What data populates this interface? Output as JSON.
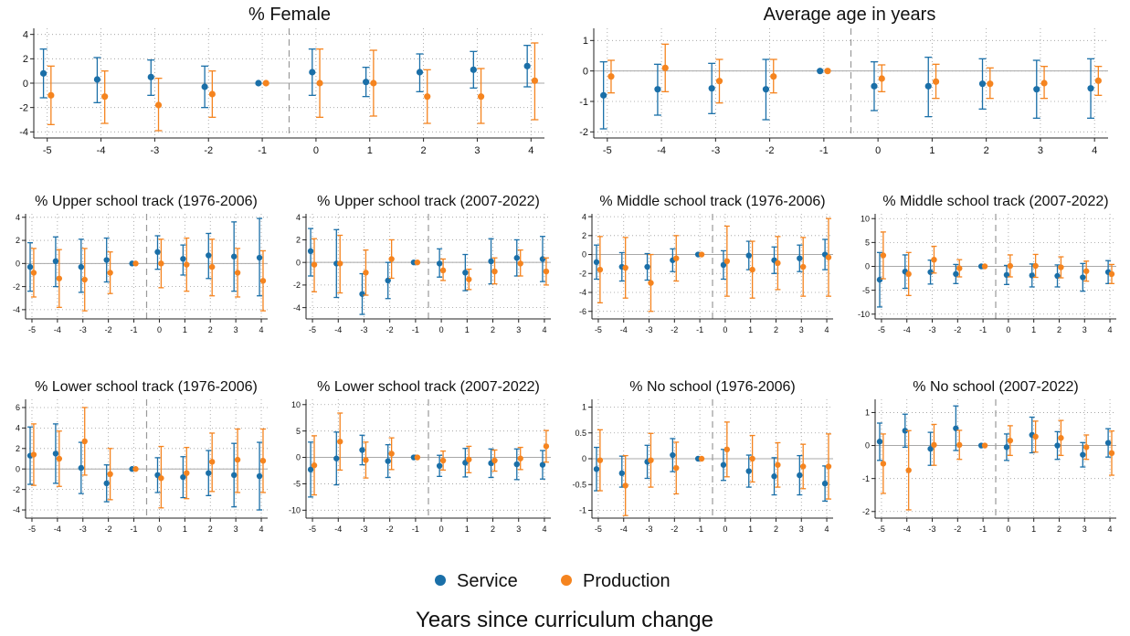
{
  "figure": {
    "legend": [
      {
        "name": "Service",
        "color": "#1a6fa8"
      },
      {
        "name": "Production",
        "color": "#f5841f"
      }
    ],
    "xlabel": "Years since curriculum change"
  },
  "chart_data": [
    {
      "type": "scatter",
      "title": "% Female",
      "x": [
        -5,
        -4,
        -3,
        -2,
        -1,
        0,
        1,
        2,
        3,
        4
      ],
      "ylim": [
        -4.5,
        4.5
      ],
      "yticks": [
        -4,
        -2,
        0,
        2,
        4
      ],
      "reference_line": -0.5,
      "series": [
        {
          "name": "Service",
          "values": [
            0.8,
            0.3,
            0.5,
            -0.3,
            0,
            0.9,
            0.1,
            0.9,
            1.1,
            1.4
          ],
          "lower": [
            -1.2,
            -1.6,
            -1.0,
            -2.0,
            0,
            -1.0,
            -1.1,
            -0.7,
            -0.4,
            -0.3
          ],
          "upper": [
            2.8,
            2.1,
            1.9,
            1.4,
            0,
            2.8,
            1.3,
            2.4,
            2.6,
            3.1
          ]
        },
        {
          "name": "Production",
          "values": [
            -1.0,
            -1.1,
            -1.8,
            -0.9,
            0,
            0.0,
            0.0,
            -1.1,
            -1.1,
            0.2
          ],
          "lower": [
            -3.4,
            -3.3,
            -3.9,
            -2.8,
            0,
            -2.8,
            -2.7,
            -3.3,
            -3.3,
            -3.0
          ],
          "upper": [
            1.4,
            1.0,
            0.4,
            1.0,
            0,
            2.8,
            2.7,
            1.1,
            1.2,
            3.3
          ]
        }
      ]
    },
    {
      "type": "scatter",
      "title": "Average age in years",
      "x": [
        -5,
        -4,
        -3,
        -2,
        -1,
        0,
        1,
        2,
        3,
        4
      ],
      "ylim": [
        -2.2,
        1.4
      ],
      "yticks": [
        -2,
        -1,
        0,
        1
      ],
      "reference_line": -0.5,
      "series": [
        {
          "name": "Service",
          "values": [
            -0.8,
            -0.6,
            -0.57,
            -0.6,
            0,
            -0.5,
            -0.5,
            -0.42,
            -0.6,
            -0.57
          ],
          "lower": [
            -1.9,
            -1.45,
            -1.4,
            -1.6,
            0,
            -1.3,
            -1.5,
            -1.25,
            -1.55,
            -1.55
          ],
          "upper": [
            0.3,
            0.22,
            0.25,
            0.38,
            0,
            0.3,
            0.45,
            0.4,
            0.35,
            0.4
          ]
        },
        {
          "name": "Production",
          "values": [
            -0.18,
            0.1,
            -0.33,
            -0.18,
            0,
            -0.25,
            -0.35,
            -0.42,
            -0.4,
            -0.32
          ],
          "lower": [
            -0.72,
            -0.68,
            -1.05,
            -0.72,
            0,
            -0.68,
            -0.9,
            -0.9,
            -0.9,
            -0.8
          ],
          "upper": [
            0.35,
            0.88,
            0.38,
            0.38,
            0,
            0.2,
            0.22,
            0.1,
            0.15,
            0.15
          ]
        }
      ]
    },
    {
      "type": "scatter",
      "title": "% Upper school track (1976-2006)",
      "x": [
        -5,
        -4,
        -3,
        -2,
        -1,
        0,
        1,
        2,
        3,
        4
      ],
      "ylim": [
        -4.8,
        4.3
      ],
      "yticks": [
        -4,
        -2,
        0,
        2,
        4
      ],
      "reference_line": -0.5,
      "series": [
        {
          "name": "Service",
          "values": [
            -0.3,
            0.2,
            -0.3,
            0.3,
            0,
            1.0,
            0.4,
            0.7,
            0.6,
            0.5
          ],
          "lower": [
            -2.4,
            -2.0,
            -2.5,
            -1.6,
            0,
            -0.5,
            -1.0,
            -1.3,
            -2.4,
            -2.8
          ],
          "upper": [
            1.8,
            2.3,
            2.1,
            2.2,
            0,
            2.4,
            1.6,
            2.6,
            3.6,
            3.9
          ]
        },
        {
          "name": "Production",
          "values": [
            -0.8,
            -1.3,
            -1.4,
            -0.8,
            0,
            0.0,
            -0.1,
            -0.3,
            -0.8,
            -1.5
          ],
          "lower": [
            -2.9,
            -3.8,
            -4.1,
            -2.6,
            0,
            -2.1,
            -2.4,
            -2.8,
            -2.9,
            -4.1
          ],
          "upper": [
            1.3,
            1.2,
            1.3,
            1.0,
            0,
            2.1,
            2.2,
            2.1,
            1.3,
            1.1
          ]
        }
      ]
    },
    {
      "type": "scatter",
      "title": "% Upper school track (2007-2022)",
      "x": [
        -5,
        -4,
        -3,
        -2,
        -1,
        0,
        1,
        2,
        3,
        4
      ],
      "ylim": [
        -5.0,
        4.3
      ],
      "yticks": [
        -4,
        -2,
        0,
        2,
        4
      ],
      "reference_line": -0.5,
      "series": [
        {
          "name": "Service",
          "values": [
            1.0,
            -0.1,
            -2.8,
            -1.6,
            0,
            -0.1,
            -0.9,
            0.1,
            0.4,
            0.3
          ],
          "lower": [
            -1.2,
            -3.1,
            -4.6,
            -3.2,
            0,
            -1.3,
            -2.5,
            -1.9,
            -1.2,
            -1.7
          ],
          "upper": [
            3.0,
            2.9,
            -1.0,
            0.0,
            0,
            1.2,
            0.7,
            2.1,
            2.0,
            2.3
          ]
        },
        {
          "name": "Production",
          "values": [
            -0.2,
            -0.1,
            -0.9,
            0.3,
            0,
            -0.7,
            -1.5,
            -0.8,
            -0.1,
            -0.8
          ],
          "lower": [
            -2.6,
            -2.7,
            -2.9,
            -1.4,
            0,
            -1.6,
            -2.4,
            -1.9,
            -1.2,
            -2.0
          ],
          "upper": [
            2.1,
            2.4,
            1.1,
            2.0,
            0,
            0.3,
            -0.6,
            0.4,
            1.1,
            0.4
          ]
        }
      ]
    },
    {
      "type": "scatter",
      "title": "% Middle school track (1976-2006)",
      "x": [
        -5,
        -4,
        -3,
        -2,
        -1,
        0,
        1,
        2,
        3,
        4
      ],
      "ylim": [
        -6.8,
        4.3
      ],
      "yticks": [
        -6,
        -4,
        -2,
        0,
        2,
        4
      ],
      "reference_line": -0.5,
      "series": [
        {
          "name": "Service",
          "values": [
            -0.8,
            -1.3,
            -1.3,
            -0.6,
            0,
            -1.1,
            -0.1,
            -0.6,
            -0.4,
            0.0
          ],
          "lower": [
            -2.6,
            -2.8,
            -2.7,
            -1.8,
            0,
            -2.6,
            -1.6,
            -2.0,
            -1.8,
            -1.6
          ],
          "upper": [
            1.0,
            0.2,
            0.1,
            0.6,
            0,
            0.4,
            1.4,
            0.8,
            1.0,
            1.6
          ]
        },
        {
          "name": "Production",
          "values": [
            -1.6,
            -1.4,
            -3.0,
            -0.4,
            0,
            -0.7,
            -1.6,
            -0.9,
            -1.3,
            -0.3
          ],
          "lower": [
            -5.1,
            -4.6,
            -6.0,
            -2.8,
            0,
            -4.4,
            -4.6,
            -3.7,
            -4.4,
            -4.4
          ],
          "upper": [
            1.9,
            1.8,
            0.0,
            2.0,
            0,
            3.0,
            1.4,
            1.9,
            1.8,
            3.8
          ]
        }
      ]
    },
    {
      "type": "scatter",
      "title": "% Middle school track (2007-2022)",
      "x": [
        -5,
        -4,
        -3,
        -2,
        -1,
        0,
        1,
        2,
        3,
        4
      ],
      "ylim": [
        -11.0,
        11.0
      ],
      "yticks": [
        -10,
        -5,
        0,
        5,
        10
      ],
      "reference_line": -0.5,
      "series": [
        {
          "name": "Service",
          "values": [
            -2.8,
            -1.1,
            -1.2,
            -1.6,
            0,
            -1.8,
            -1.9,
            -2.0,
            -2.3,
            -1.2
          ],
          "lower": [
            -8.5,
            -4.6,
            -3.7,
            -3.6,
            0,
            -3.8,
            -4.3,
            -4.3,
            -5.2,
            -3.6
          ],
          "upper": [
            2.9,
            2.4,
            1.3,
            0.4,
            0,
            0.2,
            0.5,
            0.3,
            0.6,
            1.2
          ]
        },
        {
          "name": "Production",
          "values": [
            2.3,
            -1.6,
            1.4,
            -0.4,
            0,
            0.1,
            0.1,
            -0.2,
            -1.0,
            -1.6
          ],
          "lower": [
            -2.6,
            -6.1,
            -1.4,
            -2.2,
            0,
            -2.2,
            -2.3,
            -2.4,
            -3.1,
            -3.6
          ],
          "upper": [
            7.2,
            2.9,
            4.2,
            1.4,
            0,
            2.4,
            2.5,
            2.0,
            1.1,
            0.4
          ]
        }
      ]
    },
    {
      "type": "scatter",
      "title": "% Lower school track (1976-2006)",
      "x": [
        -5,
        -4,
        -3,
        -2,
        -1,
        0,
        1,
        2,
        3,
        4
      ],
      "ylim": [
        -4.8,
        6.8
      ],
      "yticks": [
        -4,
        -2,
        0,
        2,
        4,
        6
      ],
      "reference_line": -0.5,
      "series": [
        {
          "name": "Service",
          "values": [
            1.3,
            1.5,
            0.1,
            -1.4,
            0,
            -0.6,
            -0.8,
            -0.4,
            -0.6,
            -0.7
          ],
          "lower": [
            -1.5,
            -1.4,
            -2.4,
            -3.2,
            0,
            -2.3,
            -2.8,
            -2.6,
            -3.7,
            -4.0
          ],
          "upper": [
            4.1,
            4.4,
            2.6,
            0.4,
            0,
            1.1,
            1.2,
            1.8,
            2.5,
            2.6
          ]
        },
        {
          "name": "Production",
          "values": [
            1.4,
            1.0,
            2.7,
            -0.5,
            0,
            -0.9,
            -0.4,
            0.7,
            0.9,
            0.8
          ],
          "lower": [
            -1.6,
            -1.7,
            -0.6,
            -3.0,
            0,
            -3.8,
            -2.9,
            -2.2,
            -2.3,
            -2.3
          ],
          "upper": [
            4.4,
            3.7,
            6.0,
            2.0,
            0,
            2.2,
            2.1,
            3.5,
            3.9,
            3.9
          ]
        }
      ]
    },
    {
      "type": "scatter",
      "title": "% Lower school track (2007-2022)",
      "x": [
        -5,
        -4,
        -3,
        -2,
        -1,
        0,
        1,
        2,
        3,
        4
      ],
      "ylim": [
        -11.5,
        11.0
      ],
      "yticks": [
        -10,
        -5,
        0,
        5,
        10
      ],
      "reference_line": -0.5,
      "series": [
        {
          "name": "Service",
          "values": [
            -2.3,
            -0.2,
            1.4,
            -0.7,
            0,
            -1.6,
            -1.0,
            -1.1,
            -1.3,
            -1.4
          ],
          "lower": [
            -7.5,
            -5.2,
            -1.4,
            -3.8,
            0,
            -3.6,
            -3.7,
            -3.8,
            -4.2,
            -4.1
          ],
          "upper": [
            2.9,
            4.8,
            4.2,
            2.4,
            0,
            0.4,
            1.7,
            1.6,
            1.6,
            1.3
          ]
        },
        {
          "name": "Production",
          "values": [
            -1.5,
            3.0,
            -0.5,
            0.7,
            0,
            -0.6,
            -0.4,
            -0.6,
            -0.2,
            2.1
          ],
          "lower": [
            -7.1,
            -2.4,
            -3.9,
            -2.3,
            0,
            -2.4,
            -2.9,
            -2.6,
            -2.3,
            -0.9
          ],
          "upper": [
            4.1,
            8.4,
            2.9,
            3.7,
            0,
            1.2,
            2.1,
            1.4,
            1.9,
            5.1
          ]
        }
      ]
    },
    {
      "type": "scatter",
      "title": "% No school (1976-2006)",
      "x": [
        -5,
        -4,
        -3,
        -2,
        -1,
        0,
        1,
        2,
        3,
        4
      ],
      "ylim": [
        -1.15,
        1.15
      ],
      "yticks": [
        -1,
        -0.5,
        0,
        0.5,
        1
      ],
      "reference_line": -0.5,
      "series": [
        {
          "name": "Service",
          "values": [
            -0.2,
            -0.28,
            -0.06,
            0.07,
            0,
            -0.12,
            -0.24,
            -0.34,
            -0.32,
            -0.48
          ],
          "lower": [
            -0.62,
            -0.55,
            -0.38,
            -0.25,
            0,
            -0.42,
            -0.55,
            -0.7,
            -0.7,
            -0.82
          ],
          "upper": [
            0.22,
            0.05,
            0.26,
            0.39,
            0,
            0.18,
            0.07,
            0.02,
            0.06,
            -0.14
          ]
        },
        {
          "name": "Production",
          "values": [
            -0.03,
            -0.52,
            -0.03,
            -0.18,
            0,
            0.18,
            0.0,
            -0.12,
            -0.15,
            -0.15
          ],
          "lower": [
            -0.62,
            -1.1,
            -0.55,
            -0.68,
            0,
            -0.35,
            -0.45,
            -0.55,
            -0.58,
            -0.78
          ],
          "upper": [
            0.56,
            0.06,
            0.49,
            0.32,
            0,
            0.71,
            0.45,
            0.31,
            0.28,
            0.48
          ]
        }
      ]
    },
    {
      "type": "scatter",
      "title": "% No school (2007-2022)",
      "x": [
        -5,
        -4,
        -3,
        -2,
        -1,
        0,
        1,
        2,
        3,
        4
      ],
      "ylim": [
        -2.2,
        1.4
      ],
      "yticks": [
        -2,
        -1,
        0,
        1
      ],
      "reference_line": -0.5,
      "series": [
        {
          "name": "Service",
          "values": [
            0.12,
            0.45,
            -0.1,
            0.52,
            0,
            -0.05,
            0.32,
            0.0,
            -0.28,
            0.08
          ],
          "lower": [
            -0.45,
            -0.05,
            -0.6,
            -0.15,
            0,
            -0.45,
            -0.22,
            -0.42,
            -0.65,
            -0.35
          ],
          "upper": [
            0.68,
            0.95,
            0.4,
            1.2,
            0,
            0.35,
            0.86,
            0.42,
            0.09,
            0.51
          ]
        },
        {
          "name": "Production",
          "values": [
            -0.55,
            -0.75,
            0.02,
            0.02,
            0,
            0.15,
            0.27,
            0.23,
            -0.05,
            -0.23
          ],
          "lower": [
            -1.45,
            -1.95,
            -0.6,
            -0.42,
            0,
            -0.3,
            -0.2,
            -0.3,
            -0.42,
            -0.9
          ],
          "upper": [
            0.35,
            0.45,
            0.64,
            0.46,
            0,
            0.6,
            0.74,
            0.76,
            0.32,
            0.44
          ]
        }
      ]
    }
  ]
}
